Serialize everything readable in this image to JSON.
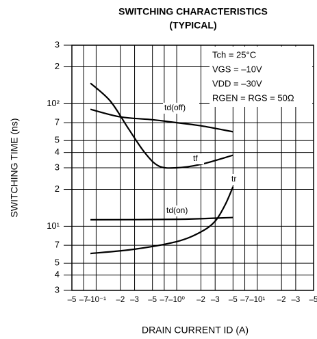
{
  "chart_data": {
    "type": "line",
    "title": "SWITCHING CHARACTERISTICS",
    "subtitle": "(TYPICAL)",
    "x_label": "DRAIN CURRENT  ID (A)",
    "y_label": "SWITCHING TIME   (ns)",
    "xscale": "log",
    "yscale": "log",
    "grid": true,
    "color": "#000000",
    "xlim": [
      0.05,
      50
    ],
    "ylim": [
      3,
      300
    ],
    "xticks": [
      {
        "value": 0.05,
        "label": "–5"
      },
      {
        "value": 0.07,
        "label": "–7"
      },
      {
        "value": 0.1,
        "label": "–10⁻¹"
      },
      {
        "value": 0.2,
        "label": "–2"
      },
      {
        "value": 0.3,
        "label": "–3"
      },
      {
        "value": 0.5,
        "label": "–5"
      },
      {
        "value": 0.7,
        "label": "–7"
      },
      {
        "value": 1,
        "label": "–10⁰"
      },
      {
        "value": 2,
        "label": "–2"
      },
      {
        "value": 3,
        "label": "–3"
      },
      {
        "value": 5,
        "label": "–5"
      },
      {
        "value": 7,
        "label": "–7"
      },
      {
        "value": 10,
        "label": "–10¹"
      },
      {
        "value": 20,
        "label": "–2"
      },
      {
        "value": 30,
        "label": "–3"
      },
      {
        "value": 50,
        "label": "–5"
      }
    ],
    "yticks": [
      3,
      4,
      5,
      7,
      {
        "value": 10,
        "label": "10¹"
      },
      {
        "value": 20,
        "label": "2"
      },
      {
        "value": 30,
        "label": "3"
      },
      {
        "value": 40,
        "label": "4"
      },
      {
        "value": 50,
        "label": "5"
      },
      {
        "value": 70,
        "label": "7"
      },
      {
        "value": 100,
        "label": "10²"
      },
      {
        "value": 200,
        "label": "2"
      },
      {
        "value": 300,
        "label": "3"
      }
    ],
    "annotations": [
      "Tch = 25°C",
      "VGS = –10V",
      "VDD = –30V",
      "RGEN = RGS = 50Ω"
    ],
    "series": [
      {
        "name": "td(off)",
        "color": "#000000",
        "x": [
          0.085,
          0.2,
          0.5,
          1,
          2,
          5
        ],
        "values": [
          90,
          78,
          74,
          70,
          66,
          59
        ]
      },
      {
        "name": "tf",
        "color": "#000000",
        "x": [
          0.085,
          0.15,
          0.25,
          0.4,
          0.6,
          1,
          2,
          5
        ],
        "values": [
          147,
          105,
          63,
          40,
          31,
          30,
          32,
          38
        ]
      },
      {
        "name": "tr",
        "color": "#000000",
        "x": [
          0.085,
          0.3,
          1,
          2,
          3,
          4,
          5
        ],
        "values": [
          6,
          6.5,
          7.5,
          9,
          11,
          15,
          21
        ]
      },
      {
        "name": "td(on)",
        "color": "#000000",
        "x": [
          0.085,
          1,
          5
        ],
        "values": [
          11.3,
          11.4,
          11.8
        ]
      }
    ]
  }
}
